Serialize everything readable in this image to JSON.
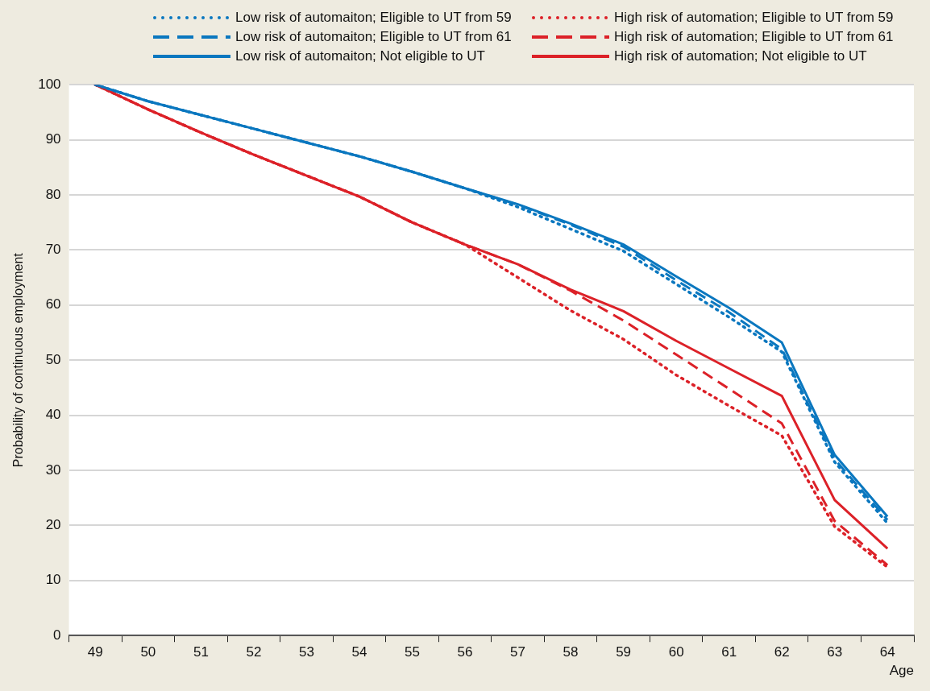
{
  "chart_data": {
    "type": "line",
    "xlabel": "Age",
    "ylabel": "Probability of continuous employment",
    "categories": [
      "49",
      "50",
      "51",
      "52",
      "53",
      "54",
      "55",
      "56",
      "57",
      "58",
      "59",
      "60",
      "61",
      "62",
      "63",
      "64"
    ],
    "ylim": [
      0,
      100
    ],
    "yticks": [
      0,
      10,
      20,
      30,
      40,
      50,
      60,
      70,
      80,
      90,
      100
    ],
    "grid": "y",
    "legend": "top",
    "marker": "none",
    "series": [
      {
        "name": "Low risk of automaiton; Eligible to UT from 59",
        "color": "#0a77bf",
        "line_style": "dotted",
        "values": [
          100,
          97,
          94.5,
          92,
          89.5,
          87,
          84.2,
          81.2,
          77.8,
          73.8,
          69.8,
          63.8,
          57.8,
          51.5,
          31.5,
          20.4
        ]
      },
      {
        "name": "High risk of automation; Eligible to UT from 59",
        "color": "#dc2128",
        "line_style": "dotted",
        "values": [
          100,
          95.5,
          91.3,
          87.3,
          83.5,
          79.7,
          75,
          71,
          65,
          59,
          53.8,
          47.3,
          41.7,
          36.3,
          19.8,
          12.4
        ]
      },
      {
        "name": "Low risk of automaiton; Eligible to UT from 61",
        "color": "#0a77bf",
        "line_style": "dashed",
        "values": [
          100,
          97,
          94.5,
          92,
          89.5,
          87,
          84.2,
          81.2,
          78.2,
          74.6,
          70.6,
          64.5,
          58.7,
          52,
          32,
          21
        ]
      },
      {
        "name": "High risk of automation; Eligible to UT from 61",
        "color": "#dc2128",
        "line_style": "dashed",
        "values": [
          100,
          95.5,
          91.3,
          87.3,
          83.5,
          79.7,
          75,
          71,
          67.4,
          62.6,
          57.2,
          51,
          44.8,
          38.5,
          20.8,
          12.8
        ]
      },
      {
        "name": "Low risk of automaiton; Not eligible to UT",
        "color": "#0a77bf",
        "line_style": "solid",
        "values": [
          100,
          97,
          94.5,
          92,
          89.5,
          87,
          84.2,
          81.2,
          78.3,
          74.8,
          71,
          65.2,
          59.5,
          53.2,
          32.8,
          21.6
        ]
      },
      {
        "name": "High risk of automation; Not eligible to UT",
        "color": "#dc2128",
        "line_style": "solid",
        "values": [
          100,
          95.5,
          91.3,
          87.3,
          83.5,
          79.7,
          75,
          71,
          67.4,
          62.8,
          58.9,
          53.5,
          48.5,
          43.5,
          24.6,
          15.8
        ]
      }
    ]
  }
}
